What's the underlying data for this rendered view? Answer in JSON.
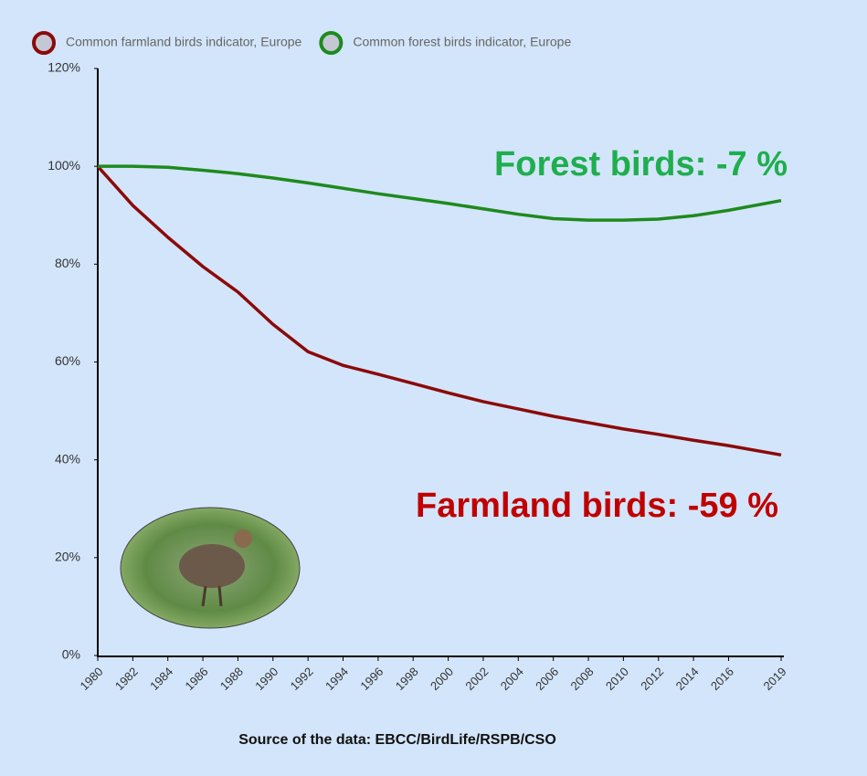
{
  "chart_data": {
    "type": "line",
    "x": [
      1980,
      1982,
      1984,
      1986,
      1988,
      1990,
      1992,
      1994,
      1996,
      1998,
      2000,
      2002,
      2004,
      2006,
      2008,
      2010,
      2012,
      2014,
      2016,
      2019
    ],
    "series": [
      {
        "name": "Common farmland birds indicator, Europe",
        "color": "#8b0a0a",
        "values": [
          100,
          92,
          85.5,
          79.5,
          74.3,
          67.7,
          62.1,
          59.3,
          57.5,
          55.6,
          53.7,
          51.9,
          50.4,
          48.9,
          47.6,
          46.3,
          45.2,
          44,
          42.9,
          41
        ]
      },
      {
        "name": "Common forest birds indicator, Europe",
        "color": "#1e8a1e",
        "values": [
          100,
          100,
          99.8,
          99.2,
          98.5,
          97.6,
          96.6,
          95.5,
          94.4,
          93.4,
          92.4,
          91.3,
          90.2,
          89.3,
          89,
          89,
          89.2,
          89.9,
          91,
          93
        ]
      }
    ],
    "xlim": [
      1980,
      2019
    ],
    "xticks": [
      1980,
      1982,
      1984,
      1986,
      1988,
      1990,
      1992,
      1994,
      1996,
      1998,
      2000,
      2002,
      2004,
      2006,
      2008,
      2010,
      2012,
      2014,
      2016,
      2019
    ],
    "ylim": [
      0,
      120
    ],
    "yticks": [
      {
        "value": 0,
        "label": "0%"
      },
      {
        "value": 20,
        "label": "20%"
      },
      {
        "value": 40,
        "label": "40%"
      },
      {
        "value": 60,
        "label": "60%"
      },
      {
        "value": 80,
        "label": "80%"
      },
      {
        "value": 100,
        "label": "100%"
      },
      {
        "value": 120,
        "label": "120%"
      }
    ],
    "grid": false,
    "legend": "top",
    "annotations": [
      {
        "text": "Forest birds: -7 %",
        "color": "#1fae4e"
      },
      {
        "text": "Farmland birds: -59 %",
        "color": "#c00000"
      }
    ],
    "source": "Source of the data: EBCC/BirdLife/RSPB/CSO"
  }
}
